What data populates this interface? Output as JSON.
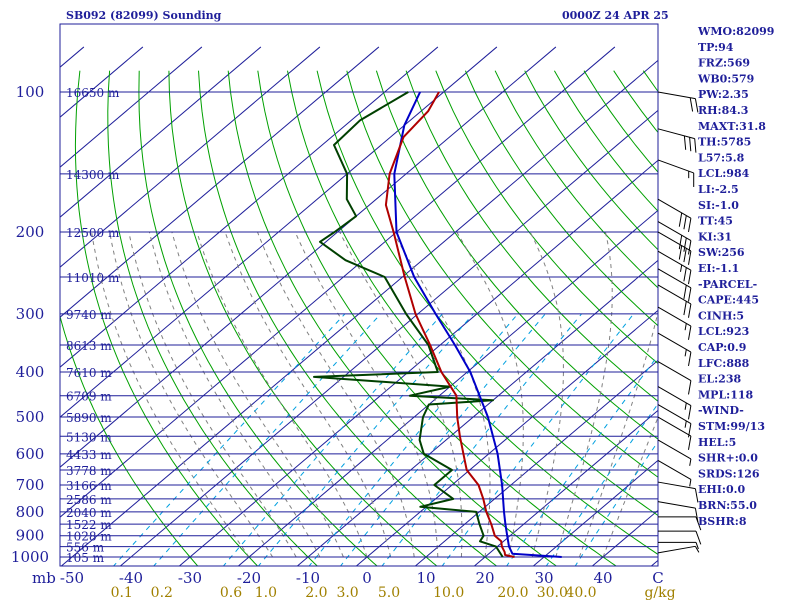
{
  "header": {
    "station": "SB092 (82099) Sounding",
    "time": "0000Z 24 APR 25"
  },
  "colors": {
    "frame": "#1f1f9a",
    "label": "#1f1f9a",
    "temperature": "#b00000",
    "dewpoint": "#004000",
    "parcel": "#0000c8",
    "isotherm": "#1f1f9a",
    "dry_adiabat": "#00a000",
    "moist_adiabat": "#808080",
    "mixing_ratio": "#00a0e0",
    "mix_label": "#a08000",
    "wind_barb": "#000000"
  },
  "chart_data": {
    "type": "skew-t log-p",
    "pressure_levels": [
      1000,
      900,
      800,
      700,
      600,
      500,
      400,
      300,
      200,
      100
    ],
    "height_labels": [
      {
        "p": 100,
        "label": "16650 m"
      },
      {
        "p": 150,
        "label": "14300 m"
      },
      {
        "p": 200,
        "label": "12500 m"
      },
      {
        "p": 250,
        "label": "11010 m"
      },
      {
        "p": 300,
        "label": "9740 m"
      },
      {
        "p": 350,
        "label": "8613 m"
      },
      {
        "p": 400,
        "label": "7610 m"
      },
      {
        "p": 450,
        "label": "6709 m"
      },
      {
        "p": 500,
        "label": "5890 m"
      },
      {
        "p": 550,
        "label": "5130 m"
      },
      {
        "p": 600,
        "label": "4433 m"
      },
      {
        "p": 650,
        "label": "3778 m"
      },
      {
        "p": 700,
        "label": "3166 m"
      },
      {
        "p": 750,
        "label": "2586 m"
      },
      {
        "p": 800,
        "label": "2040 m"
      },
      {
        "p": 850,
        "label": "1522 m"
      },
      {
        "p": 900,
        "label": "1028 m"
      },
      {
        "p": 950,
        "label": "556 m"
      },
      {
        "p": 1000,
        "label": "105 m"
      }
    ],
    "isotherm_labels": [
      -50,
      -40,
      -30,
      -20,
      -10,
      0,
      10,
      20,
      30,
      40
    ],
    "units_temp": "C",
    "units_mix": "g/kg",
    "mb_label": "mb",
    "mixing_ratio_labels": [
      "0.1",
      "0.2",
      "0.6",
      "1.0",
      "2.0",
      "3.0",
      "5.0",
      "10.0",
      "20.0",
      "30.0",
      "40.0"
    ],
    "temperature": [
      {
        "p": 1000,
        "t": 25.0
      },
      {
        "p": 990,
        "t": 23.0
      },
      {
        "p": 975,
        "t": 22.3
      },
      {
        "p": 950,
        "t": 20.8
      },
      {
        "p": 925,
        "t": 19.6
      },
      {
        "p": 900,
        "t": 17.4
      },
      {
        "p": 850,
        "t": 14.5
      },
      {
        "p": 800,
        "t": 11.2
      },
      {
        "p": 750,
        "t": 8.1
      },
      {
        "p": 700,
        "t": 4.5
      },
      {
        "p": 650,
        "t": -0.5
      },
      {
        "p": 600,
        "t": -4.3
      },
      {
        "p": 550,
        "t": -8.4
      },
      {
        "p": 500,
        "t": -12.7
      },
      {
        "p": 450,
        "t": -17.1
      },
      {
        "p": 400,
        "t": -24.4
      },
      {
        "p": 350,
        "t": -31.7
      },
      {
        "p": 300,
        "t": -40.4
      },
      {
        "p": 250,
        "t": -49.6
      },
      {
        "p": 200,
        "t": -60.5
      },
      {
        "p": 175,
        "t": -67.2
      },
      {
        "p": 150,
        "t": -72.8
      },
      {
        "p": 125,
        "t": -77.8
      },
      {
        "p": 110,
        "t": -78.8
      },
      {
        "p": 100,
        "t": -80.8
      }
    ],
    "dewpoint": [
      {
        "p": 1000,
        "t": 23.0
      },
      {
        "p": 950,
        "t": 19.8
      },
      {
        "p": 925,
        "t": 16.0
      },
      {
        "p": 900,
        "t": 15.5
      },
      {
        "p": 850,
        "t": 12.5
      },
      {
        "p": 800,
        "t": 9.5
      },
      {
        "p": 780,
        "t": -1.0
      },
      {
        "p": 750,
        "t": 3.0
      },
      {
        "p": 700,
        "t": -3.0
      },
      {
        "p": 650,
        "t": -3.0
      },
      {
        "p": 600,
        "t": -11.0
      },
      {
        "p": 560,
        "t": -14.5
      },
      {
        "p": 500,
        "t": -18.5
      },
      {
        "p": 470,
        "t": -20.0
      },
      {
        "p": 460,
        "t": -10.0
      },
      {
        "p": 450,
        "t": -25.0
      },
      {
        "p": 430,
        "t": -20.0
      },
      {
        "p": 410,
        "t": -45.0
      },
      {
        "p": 400,
        "t": -25.0
      },
      {
        "p": 350,
        "t": -32.0
      },
      {
        "p": 300,
        "t": -42.0
      },
      {
        "p": 250,
        "t": -53.0
      },
      {
        "p": 230,
        "t": -63.0
      },
      {
        "p": 210,
        "t": -71.0
      },
      {
        "p": 200,
        "t": -70.5
      },
      {
        "p": 185,
        "t": -70.0
      },
      {
        "p": 170,
        "t": -75.0
      },
      {
        "p": 150,
        "t": -80.0
      },
      {
        "p": 130,
        "t": -88.0
      },
      {
        "p": 115,
        "t": -88.5
      },
      {
        "p": 100,
        "t": -86.0
      }
    ],
    "parcel": [
      {
        "p": 1000,
        "t": 33.0
      },
      {
        "p": 984,
        "t": 24.0
      },
      {
        "p": 950,
        "t": 22.0
      },
      {
        "p": 900,
        "t": 19.5
      },
      {
        "p": 850,
        "t": 16.9
      },
      {
        "p": 800,
        "t": 14.2
      },
      {
        "p": 700,
        "t": 8.5
      },
      {
        "p": 600,
        "t": 1.5
      },
      {
        "p": 500,
        "t": -7.5
      },
      {
        "p": 400,
        "t": -19.5
      },
      {
        "p": 350,
        "t": -27.5
      },
      {
        "p": 300,
        "t": -37.0
      },
      {
        "p": 250,
        "t": -48.0
      },
      {
        "p": 200,
        "t": -60.0
      },
      {
        "p": 150,
        "t": -72.0
      },
      {
        "p": 118,
        "t": -80.0
      },
      {
        "p": 100,
        "t": -84.0
      }
    ],
    "wind_barbs": [
      {
        "p": 100,
        "dir": 280,
        "spd": 20
      },
      {
        "p": 120,
        "dir": 285,
        "spd": 30
      },
      {
        "p": 140,
        "dir": 290,
        "spd": 15
      },
      {
        "p": 170,
        "dir": 300,
        "spd": 30
      },
      {
        "p": 190,
        "dir": 300,
        "spd": 30
      },
      {
        "p": 200,
        "dir": 300,
        "spd": 30
      },
      {
        "p": 220,
        "dir": 300,
        "spd": 25
      },
      {
        "p": 240,
        "dir": 300,
        "spd": 20
      },
      {
        "p": 260,
        "dir": 300,
        "spd": 20
      },
      {
        "p": 290,
        "dir": 300,
        "spd": 15
      },
      {
        "p": 330,
        "dir": 300,
        "spd": 15
      },
      {
        "p": 380,
        "dir": 300,
        "spd": 10
      },
      {
        "p": 430,
        "dir": 300,
        "spd": 15
      },
      {
        "p": 470,
        "dir": 300,
        "spd": 15
      },
      {
        "p": 500,
        "dir": 300,
        "spd": 10
      },
      {
        "p": 560,
        "dir": 300,
        "spd": 5
      },
      {
        "p": 620,
        "dir": 300,
        "spd": 5
      },
      {
        "p": 690,
        "dir": 280,
        "spd": 10
      },
      {
        "p": 760,
        "dir": 280,
        "spd": 10
      },
      {
        "p": 820,
        "dir": 270,
        "spd": 10
      },
      {
        "p": 880,
        "dir": 270,
        "spd": 10
      },
      {
        "p": 930,
        "dir": 270,
        "spd": 5
      },
      {
        "p": 980,
        "dir": 260,
        "spd": 5
      }
    ],
    "indices": [
      "WMO:82099",
      "TP:94",
      "FRZ:569",
      "WB0:579",
      "PW:2.35",
      "RH:84.3",
      "MAXT:31.8",
      "TH:5785",
      "L57:5.8",
      "LCL:984",
      "LI:-2.5",
      "SI:-1.0",
      "TT:45",
      "KI:31",
      "SW:256",
      "EI:-1.1",
      "-PARCEL-",
      "CAPE:445",
      "CINH:5",
      "LCL:923",
      "CAP:0.9",
      "LFC:888",
      "EL:238",
      "MPL:118",
      "-WIND-",
      "STM:99/13",
      "HEL:5",
      "SHR+:0.0",
      "SRDS:126",
      "EHI:0.0",
      "BRN:55.0",
      "BSHR:8"
    ]
  }
}
